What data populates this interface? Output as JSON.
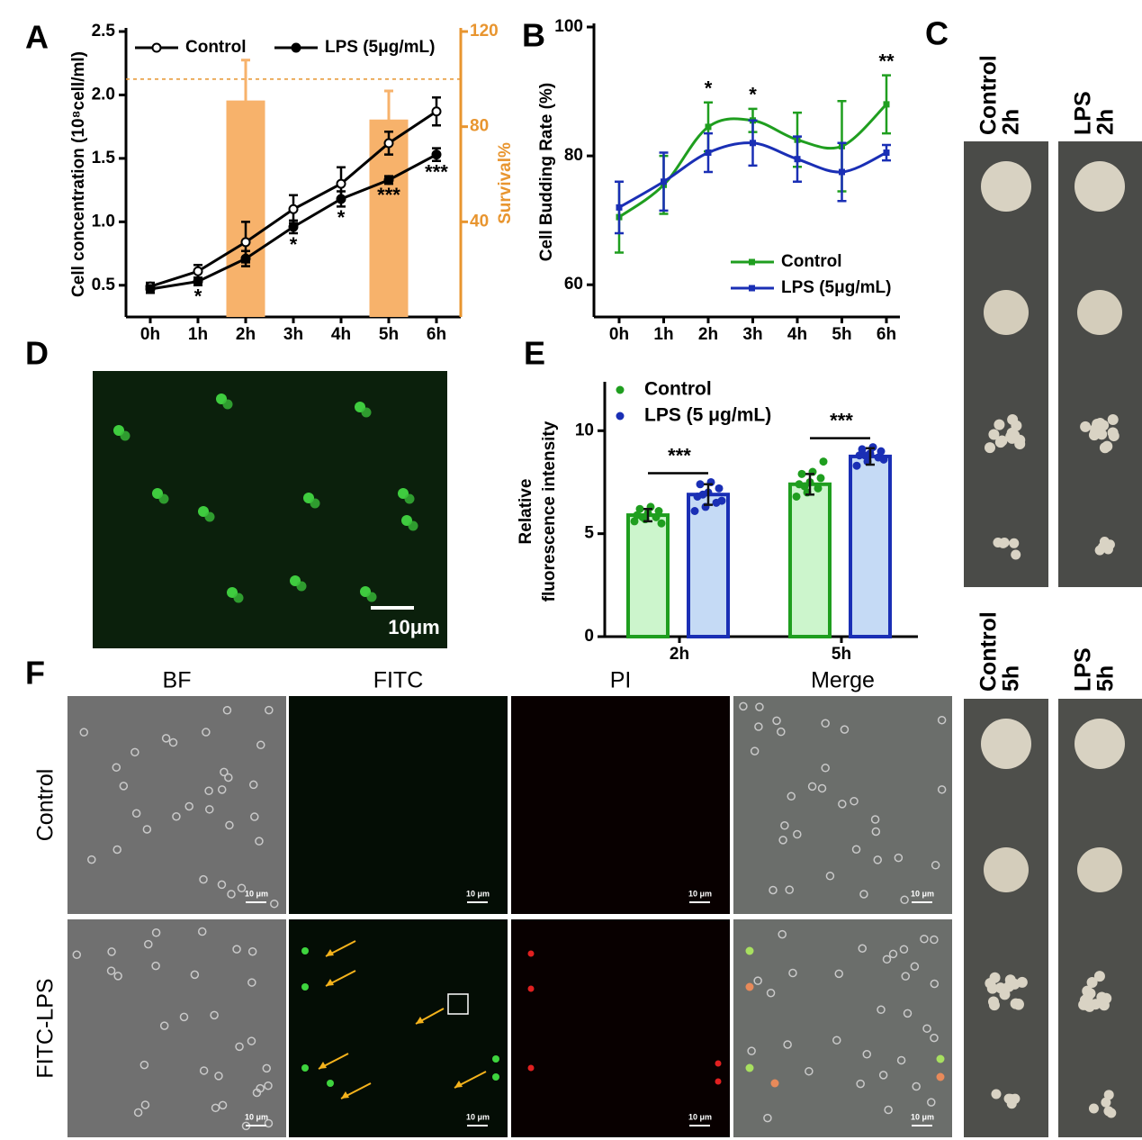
{
  "chart_data": [
    {
      "type": "line",
      "panel": "A",
      "categories": [
        "0h",
        "1h",
        "2h",
        "3h",
        "4h",
        "5h",
        "6h"
      ],
      "ylabel": "Cell concentration (10⁸cell/ml)",
      "y2label": "Survival%",
      "ylim": [
        0.25,
        2.5
      ],
      "yticks": [
        0.5,
        {
          "value": 1,
          "label": "1.0"
        },
        1.5,
        {
          "value": 2,
          "label": "2.0"
        },
        2.5
      ],
      "y2lim": [
        0,
        120
      ],
      "y2ticks": [
        40,
        80,
        120
      ],
      "y2_color": "#e8952f",
      "y2_refline": 100,
      "sig_position": "below",
      "smooth": false,
      "series": [
        {
          "name": "Control",
          "color": "#000000",
          "marker": "open",
          "values": [
            0.49,
            0.61,
            0.84,
            1.1,
            1.3,
            1.62,
            1.87
          ],
          "errors": [
            0.03,
            0.05,
            0.16,
            0.11,
            0.13,
            0.09,
            0.11
          ]
        },
        {
          "name": "LPS (5μg/mL)",
          "color": "#000000",
          "marker": "filled",
          "values": [
            0.47,
            0.53,
            0.71,
            0.96,
            1.18,
            1.33,
            1.53
          ],
          "errors": [
            0.03,
            0.03,
            0.06,
            0.05,
            0.06,
            0.03,
            0.05
          ],
          "sig_labels": [
            null,
            "*",
            null,
            "*",
            "*",
            "***",
            "***"
          ]
        },
        {
          "type": "bar",
          "axis": "y2",
          "color": "#f7b26b",
          "values": [
            null,
            null,
            91,
            null,
            null,
            83,
            null
          ],
          "errors": [
            null,
            null,
            17,
            null,
            null,
            12,
            null
          ]
        }
      ]
    },
    {
      "type": "line",
      "panel": "B",
      "categories": [
        "0h",
        "1h",
        "2h",
        "3h",
        "4h",
        "5h",
        "6h"
      ],
      "ylabel": "Cell Budding Rate (%)",
      "ylim": [
        55,
        100
      ],
      "yticks": [
        60,
        80,
        100
      ],
      "sig_position": "above",
      "smooth": true,
      "series": [
        {
          "name": "Control",
          "color": "#1f9e1f",
          "marker": "square",
          "values": [
            70.5,
            75.5,
            84.5,
            85.5,
            82.5,
            81.5,
            88
          ],
          "errors": [
            5.5,
            4.5,
            3.8,
            1.8,
            4.2,
            7,
            4.5
          ],
          "sig_labels": [
            null,
            null,
            "*",
            "*",
            null,
            null,
            "**"
          ]
        },
        {
          "name": "LPS (5μg/mL)",
          "color": "#1a2fb5",
          "marker": "square",
          "values": [
            72,
            76,
            80.5,
            82,
            79.5,
            77.5,
            80.5
          ],
          "errors": [
            4,
            4.5,
            3,
            3.5,
            3.5,
            4.5,
            1.2
          ]
        }
      ]
    },
    {
      "type": "bar",
      "panel": "E",
      "categories": [
        "2h",
        "5h"
      ],
      "ylabel": [
        "Relative",
        "fluorescence intensity"
      ],
      "ylim": [
        0,
        12.2
      ],
      "yticks": [
        0,
        5,
        10
      ],
      "sig_labels": [
        "***",
        "***"
      ],
      "series": [
        {
          "name": "Control",
          "color": "#1f9e1f",
          "fill": "#ccf5cc",
          "values": [
            5.9,
            7.4
          ],
          "errors": [
            0.3,
            0.5
          ],
          "points": [
            [
              5.6,
              5.7,
              5.8,
              5.9,
              6.0,
              6.1,
              6.2,
              6.3,
              5.5,
              5.8
            ],
            [
              6.8,
              7.0,
              7.2,
              7.4,
              7.5,
              7.7,
              7.9,
              8.0,
              8.5,
              7.3
            ]
          ]
        },
        {
          "name": "LPS (5 μg/mL)",
          "color": "#1a2fb5",
          "fill": "#c5daf5",
          "values": [
            6.9,
            8.75
          ],
          "errors": [
            0.5,
            0.4
          ],
          "points": [
            [
              6.1,
              6.3,
              6.5,
              6.8,
              7.0,
              7.2,
              7.4,
              7.5,
              6.6,
              6.9
            ],
            [
              8.3,
              8.5,
              8.7,
              8.8,
              8.9,
              9.0,
              9.1,
              9.2,
              8.6,
              8.8
            ]
          ]
        }
      ]
    }
  ],
  "panel_c": {
    "label": "C",
    "photo_labels": [
      [
        "Control",
        "2h"
      ],
      [
        "LPS",
        "2h"
      ],
      [
        "Control",
        "5h"
      ],
      [
        "LPS",
        "5h"
      ]
    ]
  },
  "panel_d": {
    "label": "D",
    "scale_bar": "10μm"
  },
  "panel_f": {
    "label": "F",
    "columns": [
      "BF",
      "FITC",
      "PI",
      "Merge"
    ],
    "rows": [
      "Control",
      "FITC-LPS"
    ],
    "scale_bar": "10 μm"
  }
}
